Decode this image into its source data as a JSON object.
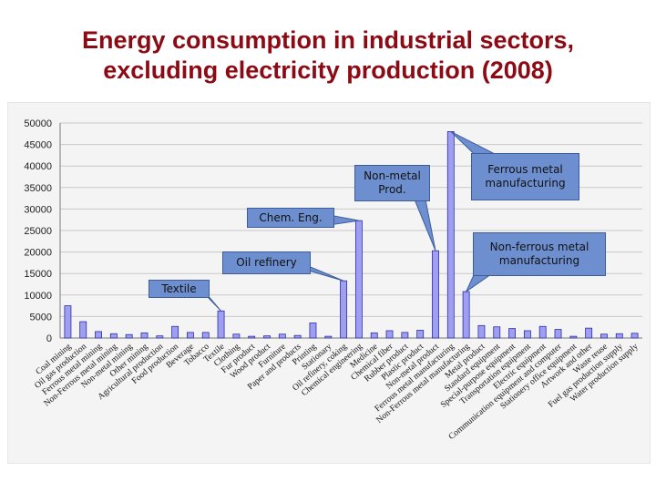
{
  "page": {
    "title_line1": "Energy consumption in industrial sectors,",
    "title_line2": "excluding electricity production (2008)"
  },
  "colors": {
    "title": "#8b0a14",
    "bar_fill": "#9f9ff2",
    "bar_stroke": "#2d2da8",
    "callout_fill": "#6d8fcf",
    "grid": "#c8c8c8"
  },
  "callouts": {
    "nonmetal": "Non-metal Prod.",
    "ferrous": "Ferrous metal manufacturing",
    "chem": "Chem. Eng.",
    "nonferrous": "Non-ferrous metal manufacturing",
    "oil": "Oil refinery",
    "textile": "Textile"
  },
  "chart_data": {
    "type": "bar",
    "title": "Energy consumption in industrial sectors, excluding electricity production (2008)",
    "ylim": [
      0,
      50000
    ],
    "yticks": [
      0,
      5000,
      10000,
      15000,
      20000,
      25000,
      30000,
      35000,
      40000,
      45000,
      50000
    ],
    "grid": true,
    "categories": [
      "Coal mining",
      "Oil gas production",
      "Ferrous metal mining",
      "Non-Ferrous metal mining",
      "Non-metal mining",
      "Other mining",
      "Agricultural production",
      "Food production",
      "Beverage",
      "Tobacco",
      "Textile",
      "Clothing",
      "Fur product",
      "Wood product",
      "Furniture",
      "Paper and products",
      "Printing",
      "Stationary",
      "Oil refinery, coking",
      "Chemical engineering",
      "Medicine",
      "Chemical fiber",
      "Rubber product",
      "Plastic product",
      "Non-metal product",
      "Ferrous metal manufacturing",
      "Non-Ferrous metal manufacturing",
      "Metal product",
      "Standard equipment",
      "Special-purpose equipment",
      "Transportation equipment",
      "Electric equipment",
      "Communication equipment and computer",
      "Stationery office equipment",
      "Artwork and other",
      "Waste reuse",
      "Fuel gas production supply",
      "Water production supply"
    ],
    "values": [
      7500,
      3800,
      1500,
      1000,
      800,
      1200,
      500,
      2700,
      1300,
      1300,
      6300,
      900,
      400,
      500,
      900,
      600,
      3500,
      400,
      13300,
      27300,
      1200,
      1700,
      1300,
      1800,
      20300,
      48000,
      10800,
      2900,
      2600,
      2200,
      1700,
      2700,
      2000,
      400,
      2300,
      900,
      1000,
      1100
    ]
  }
}
